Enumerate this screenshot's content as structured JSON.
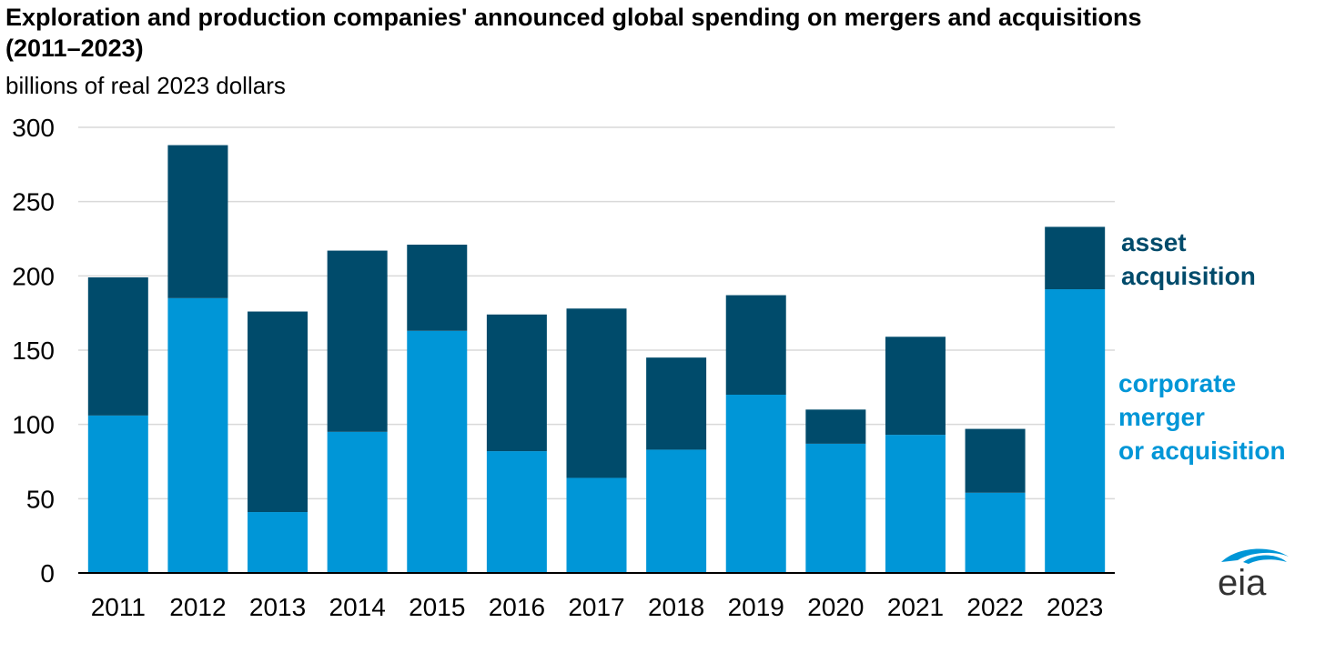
{
  "title": "Exploration and production companies' announced global spending on mergers and acquisitions (2011–2023)",
  "subtitle": "billions of real 2023 dollars",
  "legend": {
    "asset": "asset\nacquisition",
    "corporate": "corporate\nmerger\nor acquisition"
  },
  "logo_text": "eia",
  "colors": {
    "asset": "#004b6b",
    "corporate": "#0096d7",
    "grid": "#d9d9d9",
    "axis": "#000000"
  },
  "chart_data": {
    "type": "bar",
    "stacked": true,
    "categories": [
      "2011",
      "2012",
      "2013",
      "2014",
      "2015",
      "2016",
      "2017",
      "2018",
      "2019",
      "2020",
      "2021",
      "2022",
      "2023"
    ],
    "series": [
      {
        "name": "corporate merger or acquisition",
        "values": [
          106,
          185,
          41,
          95,
          163,
          82,
          64,
          83,
          120,
          87,
          93,
          54,
          191
        ]
      },
      {
        "name": "asset acquisition",
        "values": [
          93,
          103,
          135,
          122,
          58,
          92,
          114,
          62,
          67,
          23,
          66,
          43,
          42
        ]
      }
    ],
    "ylim": [
      0,
      300
    ],
    "yticks": [
      "0",
      "50",
      "100",
      "150",
      "200",
      "250",
      "300"
    ],
    "xlabel": "",
    "ylabel": "",
    "grid": true,
    "legend_position": "right"
  }
}
